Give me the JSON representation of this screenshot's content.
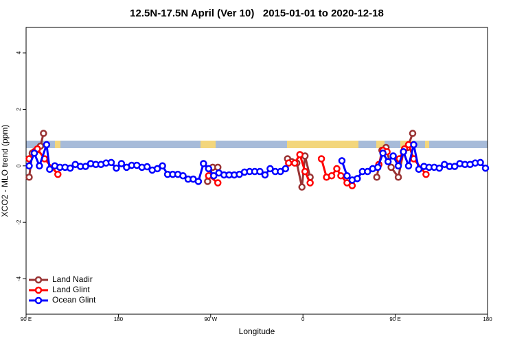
{
  "chart_data": {
    "type": "line",
    "title": "12.5N-17.5N April (Ver 10)   2015-01-01 to 2020-12-18",
    "x_label": "Longitude",
    "y_label": "XCO2 - MLO trend (ppm)",
    "xlim": [
      90,
      540
    ],
    "ylim": [
      -5.25,
      4.9
    ],
    "xticks": [
      {
        "value": 90,
        "label": "90 E"
      },
      180,
      {
        "value": 270,
        "label": "90 W"
      },
      {
        "value": 360,
        "label": "0"
      },
      {
        "value": 450,
        "label": "90 E"
      },
      {
        "value": 540,
        "label": "180"
      }
    ],
    "yticks": [
      -4,
      -2,
      0,
      2,
      4
    ],
    "legend": "bottom-left",
    "series": [
      {
        "name": "Land Nadir",
        "color": "#993333",
        "x": [
          93,
          96,
          100,
          104,
          107,
          null,
          267,
          272,
          277,
          null,
          345,
          349,
          354,
          359,
          362,
          367,
          null,
          432,
          437,
          441,
          446,
          453,
          458,
          462,
          467
        ],
        "values": [
          -0.4,
          0.45,
          0.55,
          0.7,
          1.15,
          null,
          -0.55,
          -0.05,
          -0.05,
          null,
          0.25,
          0.15,
          0.1,
          -0.75,
          0.35,
          -0.4,
          null,
          -0.4,
          0.55,
          0.65,
          -0.05,
          -0.4,
          0.5,
          0.65,
          1.15
        ]
      },
      {
        "name": "Land Glint",
        "color": "#ff0000",
        "x": [
          93,
          98,
          101,
          108,
          121,
          null,
          268,
          277,
          null,
          346,
          352,
          357,
          362,
          367,
          null,
          378,
          383,
          388,
          393,
          397,
          403,
          408,
          null,
          434,
          438,
          442,
          null,
          454,
          459,
          463,
          468,
          480
        ],
        "values": [
          0.25,
          0.5,
          0.6,
          0.25,
          -0.3,
          null,
          -0.35,
          -0.6,
          null,
          0.1,
          0.1,
          0.4,
          -0.2,
          -0.6,
          null,
          0.25,
          -0.4,
          -0.35,
          -0.1,
          -0.35,
          -0.6,
          -0.7,
          null,
          0.05,
          0.55,
          0.5,
          null,
          0.25,
          0.6,
          0.75,
          0.25,
          -0.3
        ]
      },
      {
        "name": "Ocean Glint",
        "color": "#0000ff",
        "x": [
          93,
          98,
          103,
          110,
          113,
          118,
          123,
          128,
          133,
          138,
          143,
          148,
          153,
          158,
          163,
          168,
          173,
          178,
          183,
          188,
          193,
          198,
          203,
          208,
          213,
          218,
          223,
          228,
          233,
          238,
          243,
          248,
          253,
          258,
          263,
          268,
          273,
          278,
          283,
          288,
          293,
          298,
          303,
          308,
          313,
          318,
          323,
          328,
          333,
          338,
          343,
          null,
          398,
          403,
          408,
          413,
          418,
          423,
          428,
          433,
          438,
          443,
          448,
          453,
          458,
          463,
          468,
          473,
          478,
          483,
          488,
          493,
          498,
          503,
          508,
          513,
          518,
          523,
          528,
          533,
          538
        ],
        "values": [
          0.0,
          0.45,
          0.0,
          0.75,
          -0.12,
          0.0,
          -0.05,
          -0.05,
          -0.08,
          0.05,
          -0.02,
          -0.02,
          0.08,
          0.05,
          0.05,
          0.1,
          0.12,
          -0.08,
          0.08,
          -0.05,
          0.02,
          0.02,
          -0.05,
          -0.03,
          -0.15,
          -0.1,
          0.0,
          -0.3,
          -0.3,
          -0.3,
          -0.35,
          -0.47,
          -0.47,
          -0.55,
          0.08,
          -0.1,
          -0.35,
          -0.25,
          -0.32,
          -0.32,
          -0.32,
          -0.3,
          -0.22,
          -0.2,
          -0.2,
          -0.2,
          -0.32,
          -0.1,
          -0.2,
          -0.2,
          -0.1,
          null,
          0.18,
          -0.35,
          -0.5,
          -0.45,
          -0.2,
          -0.2,
          -0.1,
          -0.05,
          0.45,
          0.15,
          0.35,
          0.0,
          0.5,
          0.0,
          0.75,
          -0.12,
          -0.02,
          -0.05,
          -0.05,
          -0.08,
          0.05,
          -0.02,
          -0.02,
          0.08,
          0.05,
          0.05,
          0.1,
          0.12,
          -0.08
        ]
      }
    ]
  }
}
